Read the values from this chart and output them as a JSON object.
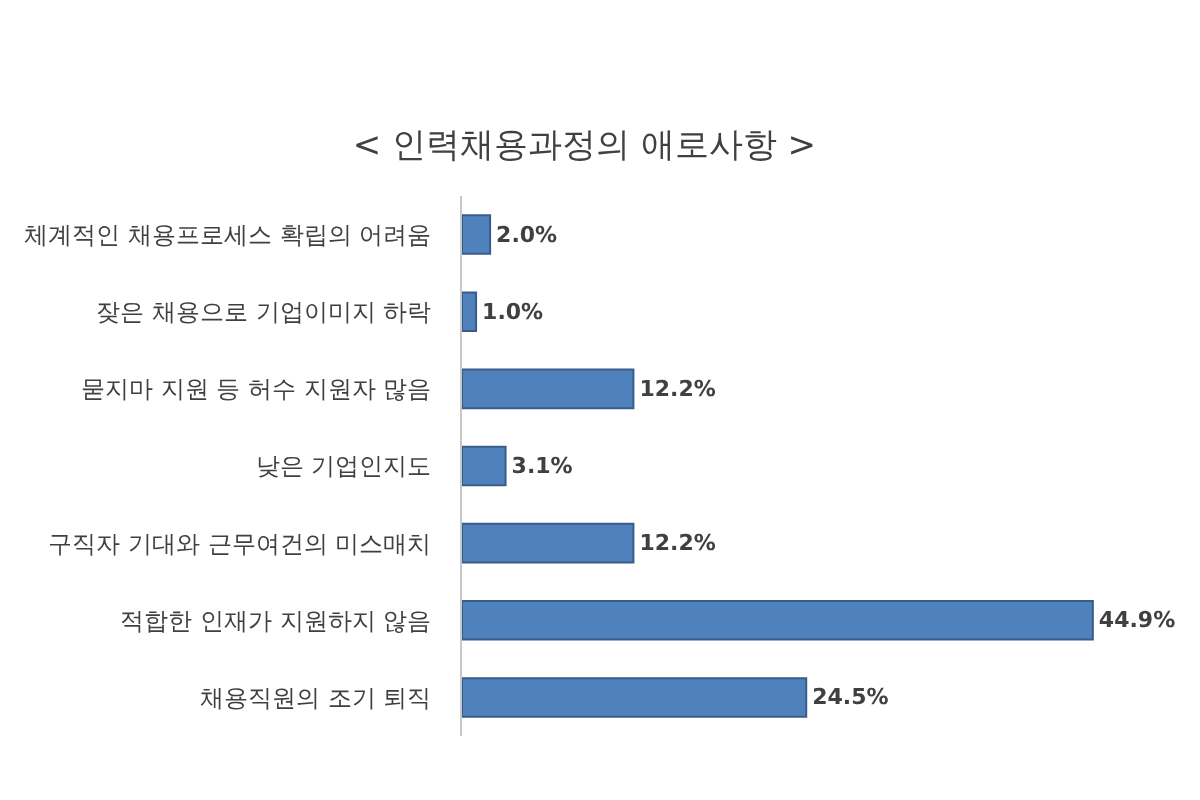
{
  "chart_data": {
    "type": "bar",
    "orientation": "horizontal",
    "title": "< 인력채용과정의 애로사항 >",
    "categories": [
      "체계적인 채용프로세스 확립의 어려움",
      "잦은 채용으로 기업이미지 하락",
      "묻지마 지원 등 허수 지원자 많음",
      "낮은 기업인지도",
      "구직자 기대와 근무여건의 미스매치",
      "적합한 인재가 지원하지 않음",
      "채용직원의 조기 퇴직"
    ],
    "values": [
      2.0,
      1.0,
      12.2,
      3.1,
      12.2,
      44.9,
      24.5
    ],
    "value_labels": [
      "2.0%",
      "1.0%",
      "12.2%",
      "3.1%",
      "12.2%",
      "44.9%",
      "24.5%"
    ],
    "color": "#4f81bd"
  }
}
